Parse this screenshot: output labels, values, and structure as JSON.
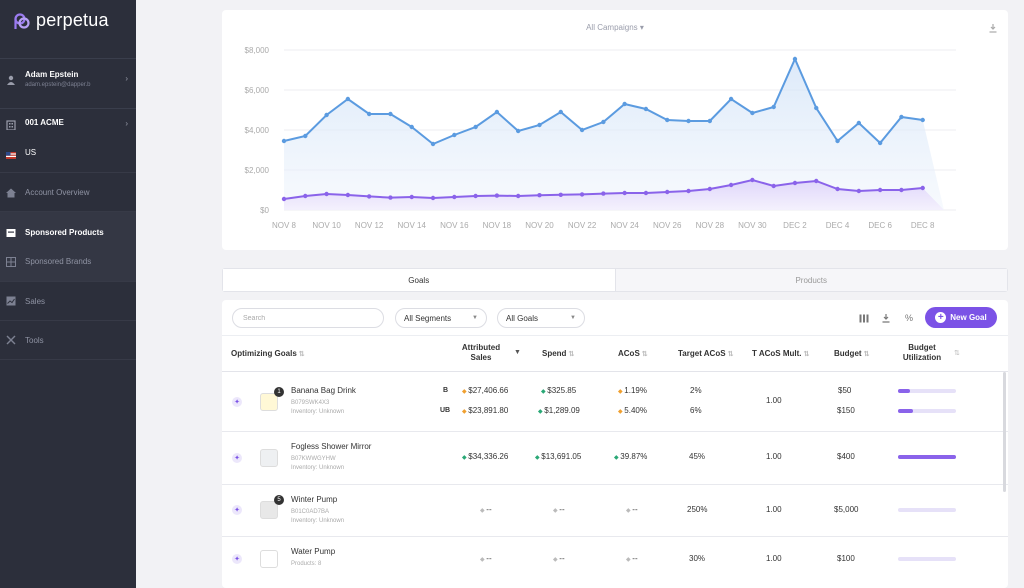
{
  "app": {
    "name": "perpetua",
    "brand_color": "#7b52e6"
  },
  "sidebar": {
    "user": {
      "name": "Adam Epstein",
      "email": "adam.epstein@dapper.b"
    },
    "account": "001 ACME",
    "country": "US",
    "nav": [
      {
        "label": "Account Overview",
        "icon": "home-icon"
      },
      {
        "label": "Sponsored Products",
        "icon": "products-icon"
      },
      {
        "label": "Sponsored Brands",
        "icon": "brands-icon"
      },
      {
        "label": "Sales",
        "icon": "chart-icon"
      },
      {
        "label": "Tools",
        "icon": "tools-icon"
      }
    ]
  },
  "chart_card": {
    "campaign_select": "All Campaigns ▾"
  },
  "chart_data": {
    "type": "area",
    "x": [
      "NOV 8",
      "NOV 9",
      "NOV 10",
      "NOV 11",
      "NOV 12",
      "NOV 13",
      "NOV 14",
      "NOV 15",
      "NOV 16",
      "NOV 17",
      "NOV 18",
      "NOV 19",
      "NOV 20",
      "NOV 21",
      "NOV 22",
      "NOV 23",
      "NOV 24",
      "NOV 25",
      "NOV 26",
      "NOV 27",
      "NOV 28",
      "NOV 29",
      "NOV 30",
      "DEC 1",
      "DEC 2",
      "DEC 3",
      "DEC 4",
      "DEC 5",
      "DEC 6",
      "DEC 7",
      "DEC 8",
      "DEC 9"
    ],
    "xticks": [
      "NOV 8",
      "NOV 10",
      "NOV 12",
      "NOV 14",
      "NOV 16",
      "NOV 18",
      "NOV 20",
      "NOV 22",
      "NOV 24",
      "NOV 26",
      "NOV 28",
      "NOV 30",
      "DEC 2",
      "DEC 4",
      "DEC 6",
      "DEC 8"
    ],
    "yticks": [
      "$0",
      "$2,000",
      "$4,000",
      "$6,000",
      "$8,000"
    ],
    "ylim": [
      0,
      8000
    ],
    "series": [
      {
        "color": "#5b9be0",
        "values": [
          3450,
          3700,
          4750,
          5550,
          4800,
          4800,
          4150,
          3300,
          3750,
          4150,
          4900,
          3950,
          4250,
          4900,
          4000,
          4400,
          5300,
          5050,
          4500,
          4450,
          4450,
          5550,
          4850,
          5150,
          7550,
          5100,
          3450,
          4350,
          3350,
          4650,
          4500,
          0
        ]
      },
      {
        "color": "#8a63ea",
        "values": [
          550,
          700,
          800,
          750,
          680,
          620,
          650,
          600,
          650,
          700,
          720,
          700,
          740,
          760,
          780,
          820,
          850,
          850,
          900,
          950,
          1050,
          1250,
          1500,
          1200,
          1350,
          1450,
          1050,
          950,
          1000,
          1000,
          1100,
          0
        ]
      }
    ]
  },
  "tabs": [
    {
      "label": "Goals"
    },
    {
      "label": "Products"
    }
  ],
  "toolbar": {
    "search_placeholder": "Search",
    "segments": "All Segments",
    "goals": "All Goals",
    "percent": "%",
    "new_goal": "New Goal"
  },
  "columns": {
    "goal": "Optimizing Goals",
    "sales1": "Attributed",
    "sales2": "Sales",
    "spend": "Spend",
    "acos": "ACoS",
    "target": "Target ACoS",
    "mult": "T ACoS Mult.",
    "budget": "Budget",
    "util1": "Budget",
    "util2": "Utilization"
  },
  "rows": [
    {
      "name": "Banana Bag Drink",
      "asin": "B079SWK4X3",
      "inventory": "Inventory: Unknown",
      "badge": "1",
      "lines": [
        {
          "type": "B",
          "sales": "$27,406.66",
          "spend": "$325.85",
          "acos": "1.19%",
          "target": "2%",
          "budget": "$50",
          "util": 0.2
        },
        {
          "type": "UB",
          "sales": "$23,891.80",
          "spend": "$1,289.09",
          "acos": "5.40%",
          "target": "6%",
          "budget": "$150",
          "util": 0.25
        }
      ],
      "mult": "1.00"
    },
    {
      "name": "Fogless Shower Mirror",
      "asin": "B07KWWGYHW",
      "inventory": "Inventory: Unknown",
      "sales": "$34,336.26",
      "spend": "$13,691.05",
      "acos": "39.87%",
      "target": "45%",
      "mult": "1.00",
      "budget": "$400",
      "util": 1.0
    },
    {
      "name": "Winter Pump",
      "asin": "B01C0AD7BA",
      "inventory": "Inventory: Unknown",
      "badge": "5",
      "sales": "--",
      "spend": "--",
      "acos": "--",
      "target": "250%",
      "mult": "1.00",
      "budget": "$5,000",
      "util": 0.0
    },
    {
      "name": "Water Pump",
      "asin": "Products: 8",
      "sales": "--",
      "spend": "--",
      "acos": "--",
      "target": "30%",
      "mult": "1.00",
      "budget": "$100",
      "util": 0.0
    }
  ]
}
